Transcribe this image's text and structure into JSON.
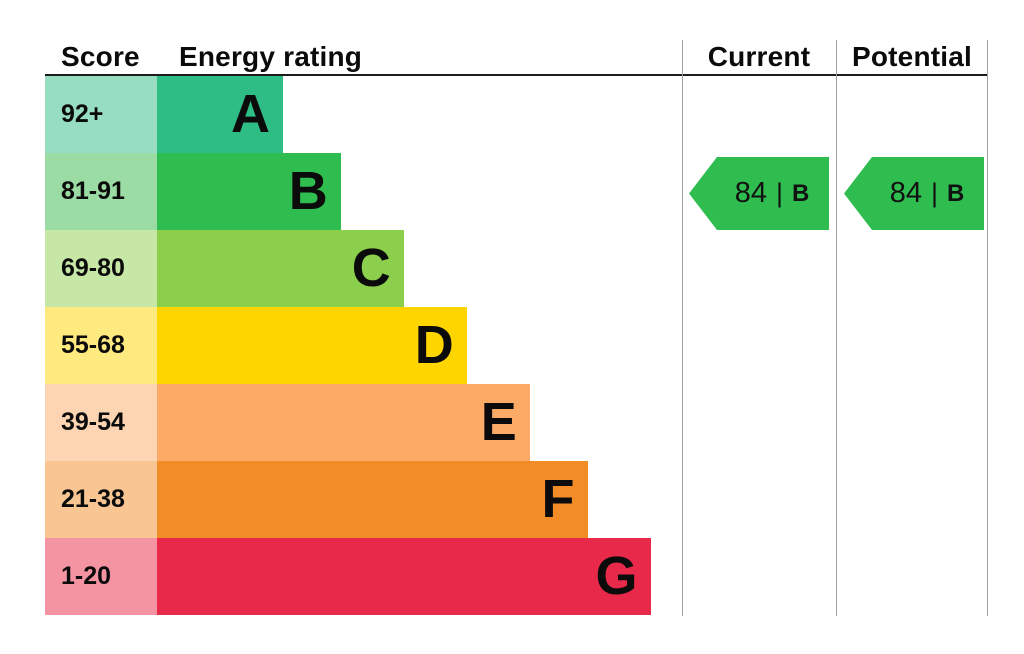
{
  "header": {
    "score": "Score",
    "energy_rating": "Energy rating",
    "current": "Current",
    "potential": "Potential"
  },
  "arrow_divider": "|",
  "chart_data": {
    "type": "bar",
    "title": "Energy rating",
    "description": "EPC energy efficiency rating chart",
    "bands": [
      {
        "score_range": "92+",
        "letter": "A",
        "color": "#2ebd84",
        "tint": "#97ddc1",
        "width_pct": 24
      },
      {
        "score_range": "81-91",
        "letter": "B",
        "color": "#2fbd4f",
        "tint": "#9bdba4",
        "width_pct": 35
      },
      {
        "score_range": "69-80",
        "letter": "C",
        "color": "#8ccf4d",
        "tint": "#c6e7a6",
        "width_pct": 47
      },
      {
        "score_range": "55-68",
        "letter": "D",
        "color": "#ffd500",
        "tint": "#ffea80",
        "width_pct": 59
      },
      {
        "score_range": "39-54",
        "letter": "E",
        "color": "#fbab66",
        "tint": "#fdd5b2",
        "width_pct": 71
      },
      {
        "score_range": "21-38",
        "letter": "F",
        "color": "#f18c26",
        "tint": "#f8c593",
        "width_pct": 82
      },
      {
        "score_range": "1-20",
        "letter": "G",
        "color": "#e9294a",
        "tint": "#f494a3",
        "width_pct": 94
      }
    ],
    "current": {
      "score": "84",
      "band": "B",
      "color": "#2fbd4f"
    },
    "potential": {
      "score": "84",
      "band": "B",
      "color": "#2fbd4f"
    }
  }
}
